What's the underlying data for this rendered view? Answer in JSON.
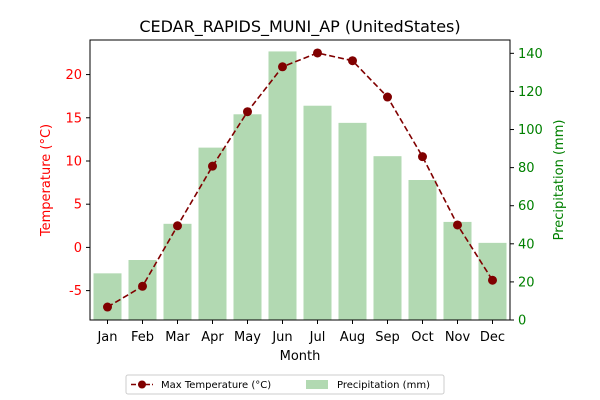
{
  "chart_data": {
    "type": "bar+line",
    "title": "CEDAR_RAPIDS_MUNI_AP (UnitedStates)",
    "xlabel": "Month",
    "ylabel_left": "Temperature (°C)",
    "ylabel_right": "Precipitation (mm)",
    "categories": [
      "Jan",
      "Feb",
      "Mar",
      "Apr",
      "May",
      "Jun",
      "Jul",
      "Aug",
      "Sep",
      "Oct",
      "Nov",
      "Dec"
    ],
    "ylim_left": [
      -8.4,
      24.0
    ],
    "ylim_right": [
      0,
      147
    ],
    "yticks_left": [
      "-5",
      "0",
      "5",
      "10",
      "15",
      "20"
    ],
    "yticks_right": [
      "0",
      "20",
      "40",
      "60",
      "80",
      "100",
      "120",
      "140"
    ],
    "series": [
      {
        "name": "Max Temperature (°C)",
        "type": "line",
        "axis": "left",
        "color": "#800000",
        "values": [
          -6.9,
          -4.5,
          2.5,
          9.4,
          15.7,
          20.9,
          22.5,
          21.6,
          17.4,
          10.5,
          2.6,
          -3.8
        ]
      },
      {
        "name": "Precipitation (mm)",
        "type": "bar",
        "axis": "right",
        "color": "#b2d9b2",
        "values": [
          24.5,
          31.5,
          50.5,
          90.5,
          108.0,
          141.0,
          112.5,
          103.5,
          86.0,
          73.5,
          51.5,
          40.5
        ]
      }
    ],
    "legend_position": "bottom-center",
    "colors": {
      "left_axis": "#ff0000",
      "right_axis": "#008000"
    }
  }
}
